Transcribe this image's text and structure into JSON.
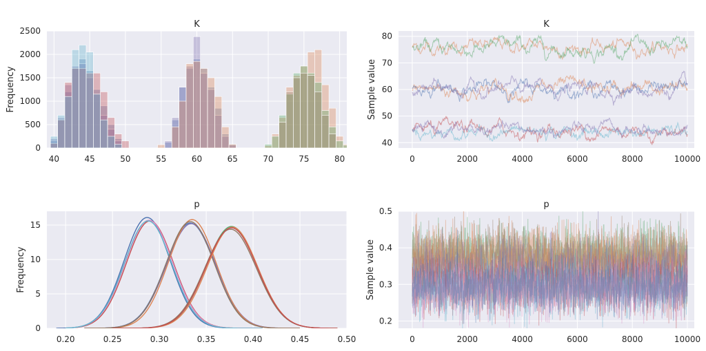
{
  "chart_data": [
    {
      "type": "bar",
      "title": "K",
      "xlabel": "",
      "ylabel": "Frequency",
      "xlim": [
        39,
        81
      ],
      "ylim": [
        0,
        2500
      ],
      "xticks": [
        40,
        45,
        50,
        55,
        60,
        65,
        70,
        75,
        80
      ],
      "yticks": [
        0,
        500,
        1000,
        1500,
        2000,
        2500
      ],
      "grid": true,
      "bin_width": 1,
      "series": [
        {
          "color": "#4c72b0",
          "bins": [
            {
              "x": 40,
              "y": 150
            },
            {
              "x": 41,
              "y": 600
            },
            {
              "x": 42,
              "y": 1200
            },
            {
              "x": 43,
              "y": 1700
            },
            {
              "x": 44,
              "y": 1900
            },
            {
              "x": 45,
              "y": 1650
            },
            {
              "x": 46,
              "y": 1250
            },
            {
              "x": 47,
              "y": 900
            },
            {
              "x": 48,
              "y": 500
            },
            {
              "x": 49,
              "y": 200
            },
            {
              "x": 56,
              "y": 120
            },
            {
              "x": 57,
              "y": 600
            },
            {
              "x": 58,
              "y": 1300
            },
            {
              "x": 59,
              "y": 1700
            },
            {
              "x": 60,
              "y": 1900
            },
            {
              "x": 61,
              "y": 1700
            },
            {
              "x": 62,
              "y": 1300
            },
            {
              "x": 63,
              "y": 850
            },
            {
              "x": 64,
              "y": 300
            },
            {
              "x": 65,
              "y": 80
            }
          ]
        },
        {
          "color": "#8172b2",
          "bins": [
            {
              "x": 40,
              "y": 200
            },
            {
              "x": 41,
              "y": 650
            },
            {
              "x": 42,
              "y": 1350
            },
            {
              "x": 43,
              "y": 1750
            },
            {
              "x": 44,
              "y": 1800
            },
            {
              "x": 45,
              "y": 1500
            },
            {
              "x": 46,
              "y": 1150
            },
            {
              "x": 47,
              "y": 700
            },
            {
              "x": 48,
              "y": 400
            },
            {
              "x": 49,
              "y": 150
            },
            {
              "x": 56,
              "y": 150
            },
            {
              "x": 57,
              "y": 650
            },
            {
              "x": 58,
              "y": 1300
            },
            {
              "x": 59,
              "y": 1750
            },
            {
              "x": 60,
              "y": 2380
            },
            {
              "x": 61,
              "y": 1600
            },
            {
              "x": 62,
              "y": 1250
            },
            {
              "x": 63,
              "y": 700
            },
            {
              "x": 64,
              "y": 250
            },
            {
              "x": 65,
              "y": 60
            }
          ]
        },
        {
          "color": "#c44e52",
          "bins": [
            {
              "x": 40,
              "y": 100
            },
            {
              "x": 41,
              "y": 600
            },
            {
              "x": 42,
              "y": 1400
            },
            {
              "x": 43,
              "y": 1700
            },
            {
              "x": 44,
              "y": 1700
            },
            {
              "x": 45,
              "y": 1600
            },
            {
              "x": 46,
              "y": 1600
            },
            {
              "x": 47,
              "y": 1200
            },
            {
              "x": 48,
              "y": 650
            },
            {
              "x": 49,
              "y": 300
            },
            {
              "x": 50,
              "y": 150
            }
          ]
        },
        {
          "color": "#64b5cd",
          "bins": [
            {
              "x": 40,
              "y": 250
            },
            {
              "x": 41,
              "y": 700
            },
            {
              "x": 42,
              "y": 1100
            },
            {
              "x": 43,
              "y": 2100
            },
            {
              "x": 44,
              "y": 2200
            },
            {
              "x": 45,
              "y": 2050
            },
            {
              "x": 46,
              "y": 1150
            },
            {
              "x": 47,
              "y": 600
            },
            {
              "x": 48,
              "y": 250
            },
            {
              "x": 49,
              "y": 80
            }
          ]
        },
        {
          "color": "#dd8452",
          "bins": [
            {
              "x": 55,
              "y": 70
            },
            {
              "x": 57,
              "y": 450
            },
            {
              "x": 58,
              "y": 1000
            },
            {
              "x": 59,
              "y": 1800
            },
            {
              "x": 60,
              "y": 1850
            },
            {
              "x": 61,
              "y": 1700
            },
            {
              "x": 62,
              "y": 1500
            },
            {
              "x": 63,
              "y": 1100
            },
            {
              "x": 64,
              "y": 450
            },
            {
              "x": 65,
              "y": 80
            },
            {
              "x": 70,
              "y": 50
            },
            {
              "x": 71,
              "y": 300
            },
            {
              "x": 72,
              "y": 650
            },
            {
              "x": 73,
              "y": 1300
            },
            {
              "x": 74,
              "y": 1550
            },
            {
              "x": 75,
              "y": 1750
            },
            {
              "x": 76,
              "y": 2050
            },
            {
              "x": 77,
              "y": 2100
            },
            {
              "x": 78,
              "y": 1350
            },
            {
              "x": 79,
              "y": 850
            },
            {
              "x": 80,
              "y": 250
            },
            {
              "x": 81,
              "y": 80
            }
          ]
        },
        {
          "color": "#55a868",
          "bins": [
            {
              "x": 70,
              "y": 80
            },
            {
              "x": 71,
              "y": 250
            },
            {
              "x": 72,
              "y": 700
            },
            {
              "x": 73,
              "y": 1150
            },
            {
              "x": 74,
              "y": 1600
            },
            {
              "x": 75,
              "y": 1750
            },
            {
              "x": 76,
              "y": 1600
            },
            {
              "x": 77,
              "y": 1400
            },
            {
              "x": 78,
              "y": 800
            },
            {
              "x": 79,
              "y": 450
            },
            {
              "x": 80,
              "y": 150
            },
            {
              "x": 81,
              "y": 60
            }
          ]
        },
        {
          "color": "#937860",
          "bins": [
            {
              "x": 72,
              "y": 550
            },
            {
              "x": 73,
              "y": 1200
            },
            {
              "x": 74,
              "y": 1500
            },
            {
              "x": 75,
              "y": 1600
            },
            {
              "x": 76,
              "y": 1550
            },
            {
              "x": 77,
              "y": 1200
            },
            {
              "x": 78,
              "y": 700
            },
            {
              "x": 79,
              "y": 300
            }
          ]
        }
      ]
    },
    {
      "type": "line",
      "title": "K",
      "xlabel": "",
      "ylabel": "Sample value",
      "xlim": [
        -500,
        10250
      ],
      "ylim": [
        38,
        82
      ],
      "xticks": [
        0,
        2000,
        4000,
        6000,
        8000,
        10000
      ],
      "yticks": [
        40,
        50,
        60,
        70,
        80
      ],
      "grid": true,
      "series": [
        {
          "color": "#dd8452",
          "level": 76,
          "spread": 1.8
        },
        {
          "color": "#55a868",
          "level": 75.5,
          "spread": 2.0
        },
        {
          "color": "#dd8452",
          "level": 60,
          "spread": 2.0
        },
        {
          "color": "#4c72b0",
          "level": 60.5,
          "spread": 1.8
        },
        {
          "color": "#8172b2",
          "level": 60,
          "spread": 1.8
        },
        {
          "color": "#c44e52",
          "level": 44.5,
          "spread": 1.8
        },
        {
          "color": "#64b5cd",
          "level": 44,
          "spread": 1.6
        },
        {
          "color": "#8172b2",
          "level": 44.5,
          "spread": 1.6
        }
      ]
    },
    {
      "type": "line",
      "title": "p",
      "xlabel": "",
      "ylabel": "Frequency",
      "xlim": [
        0.18,
        0.5
      ],
      "ylim": [
        0,
        17
      ],
      "xticks": [
        0.2,
        0.25,
        0.3,
        0.35,
        0.4,
        0.45,
        0.5
      ],
      "yticks": [
        0,
        5,
        10,
        15
      ],
      "grid": true,
      "series": [
        {
          "color": "#4c72b0",
          "mean": 0.287,
          "sd": 0.0248,
          "peak": 16.1,
          "min": 0.19,
          "max": 0.41
        },
        {
          "color": "#c44e52",
          "mean": 0.29,
          "sd": 0.0252,
          "peak": 15.6,
          "min": 0.21,
          "max": 0.41
        },
        {
          "color": "#da8bc3",
          "mean": 0.289,
          "sd": 0.0254,
          "peak": 15.7,
          "min": 0.2,
          "max": 0.41
        },
        {
          "color": "#64b5cd",
          "mean": 0.288,
          "sd": 0.0252,
          "peak": 15.6,
          "min": 0.2,
          "max": 0.41
        },
        {
          "color": "#4c72b0",
          "mean": 0.333,
          "sd": 0.0262,
          "peak": 15.3,
          "min": 0.22,
          "max": 0.45
        },
        {
          "color": "#8172b2",
          "mean": 0.334,
          "sd": 0.0264,
          "peak": 15.2,
          "min": 0.22,
          "max": 0.45
        },
        {
          "color": "#dd8452",
          "mean": 0.335,
          "sd": 0.0254,
          "peak": 15.8,
          "min": 0.22,
          "max": 0.45
        },
        {
          "color": "#937860",
          "mean": 0.333,
          "sd": 0.0258,
          "peak": 15.5,
          "min": 0.22,
          "max": 0.45
        },
        {
          "color": "#55a868",
          "mean": 0.377,
          "sd": 0.0272,
          "peak": 14.8,
          "min": 0.25,
          "max": 0.49
        },
        {
          "color": "#dd8452",
          "mean": 0.378,
          "sd": 0.027,
          "peak": 14.7,
          "min": 0.25,
          "max": 0.49
        },
        {
          "color": "#937860",
          "mean": 0.376,
          "sd": 0.0276,
          "peak": 14.4,
          "min": 0.25,
          "max": 0.49
        },
        {
          "color": "#c44e52",
          "mean": 0.377,
          "sd": 0.0274,
          "peak": 14.6,
          "min": 0.25,
          "max": 0.49
        }
      ]
    },
    {
      "type": "line",
      "title": "p",
      "xlabel": "",
      "ylabel": "Sample value",
      "xlim": [
        -500,
        10250
      ],
      "ylim": [
        0.18,
        0.5
      ],
      "xticks": [
        0,
        2000,
        4000,
        6000,
        8000,
        10000
      ],
      "yticks": [
        0.2,
        0.3,
        0.4,
        0.5
      ],
      "grid": true,
      "series": [
        {
          "color": "#55a868",
          "level": 0.377,
          "spread": 0.04
        },
        {
          "color": "#dd8452",
          "level": 0.378,
          "spread": 0.04
        },
        {
          "color": "#937860",
          "level": 0.376,
          "spread": 0.04
        },
        {
          "color": "#dd8452",
          "level": 0.335,
          "spread": 0.038
        },
        {
          "color": "#8172b2",
          "level": 0.334,
          "spread": 0.038
        },
        {
          "color": "#c44e52",
          "level": 0.29,
          "spread": 0.036
        },
        {
          "color": "#64b5cd",
          "level": 0.288,
          "spread": 0.036
        },
        {
          "color": "#da8bc3",
          "level": 0.289,
          "spread": 0.036
        },
        {
          "color": "#4c72b0",
          "level": 0.297,
          "spread": 0.034
        }
      ]
    }
  ]
}
